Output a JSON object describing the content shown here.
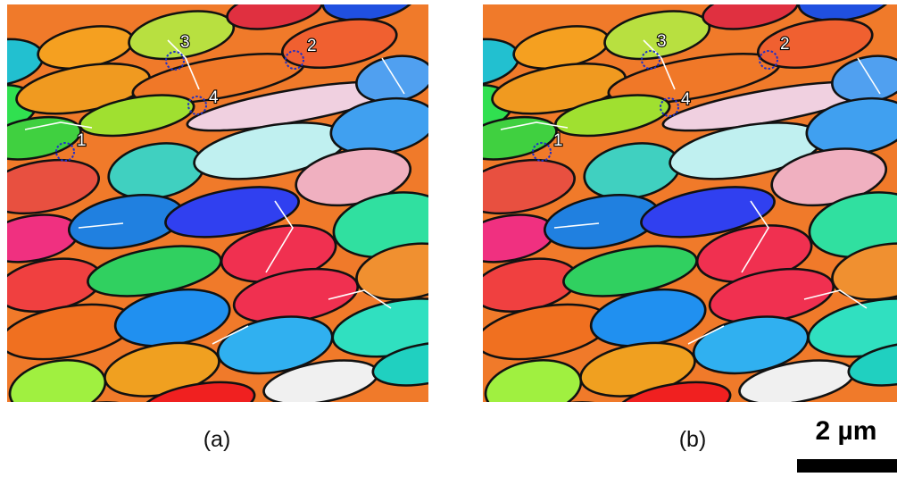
{
  "panels": [
    {
      "label": "(a)",
      "markers": [
        "1",
        "2",
        "3",
        "4"
      ]
    },
    {
      "label": "(b)",
      "markers": [
        "1",
        "2",
        "3",
        "4"
      ]
    }
  ],
  "scale_bar": "2 µm"
}
